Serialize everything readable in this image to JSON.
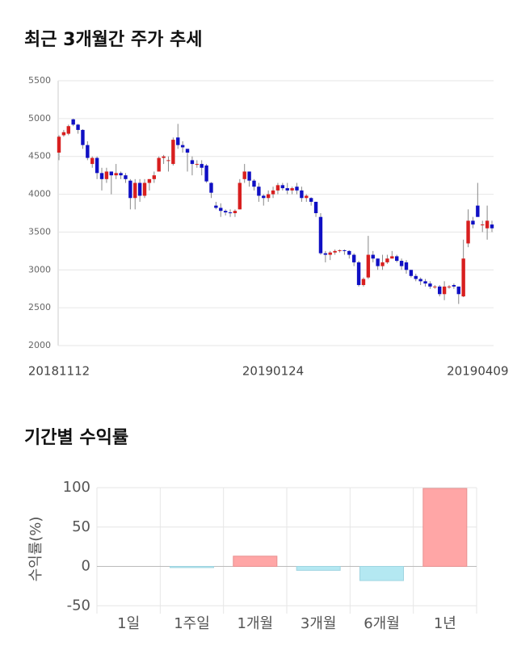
{
  "chart_data": [
    {
      "type": "candlestick",
      "title": "최근 3개월간 주가 추세",
      "categories": [
        "20181112",
        null,
        null,
        null,
        null,
        null,
        null,
        null,
        null,
        null,
        null,
        null,
        null,
        null,
        null,
        null,
        null,
        null,
        null,
        null,
        null,
        null,
        null,
        null,
        null,
        null,
        null,
        null,
        null,
        null,
        null,
        null,
        null,
        null,
        null,
        null,
        null,
        null,
        null,
        null,
        null,
        null,
        null,
        null,
        null,
        "20190124",
        null,
        null,
        null,
        null,
        null,
        null,
        null,
        null,
        null,
        null,
        null,
        null,
        null,
        null,
        null,
        null,
        null,
        null,
        null,
        null,
        null,
        null,
        null,
        null,
        null,
        null,
        null,
        null,
        null,
        null,
        null,
        null,
        null,
        null,
        null,
        null,
        null,
        null,
        null,
        null,
        null,
        null,
        "20190409",
        null,
        null,
        null
      ],
      "open": [
        4550,
        4780,
        4800,
        4990,
        4920,
        4850,
        4650,
        4400,
        4480,
        4280,
        4200,
        4300,
        4250,
        4280,
        4250,
        4180,
        3950,
        4150,
        3980,
        4150,
        4200,
        4300,
        4480,
        4450,
        4400,
        4750,
        4650,
        4600,
        4450,
        4400,
        4400,
        4380,
        4150,
        3850,
        3820,
        3780,
        3760,
        3750,
        3800,
        4200,
        4300,
        4180,
        4100,
        3980,
        3950,
        4000,
        4050,
        4120,
        4080,
        4050,
        4100,
        4050,
        3950,
        3950,
        3900,
        3700,
        3220,
        3200,
        3230,
        3250,
        3260,
        3250,
        3200,
        3100,
        2800,
        2900,
        3200,
        3150,
        3050,
        3100,
        3150,
        3180,
        3120,
        3100,
        3000,
        2920,
        2880,
        2850,
        2820,
        2780,
        2780,
        2680,
        2780,
        2800,
        2780,
        2650,
        3350,
        3650,
        3850,
        3600,
        3550,
        3600
      ],
      "high": [
        4780,
        4850,
        4920,
        5000,
        4930,
        4860,
        4700,
        4500,
        4500,
        4350,
        4350,
        4300,
        4400,
        4300,
        4280,
        4200,
        4200,
        4200,
        4200,
        4200,
        4300,
        4500,
        4520,
        4500,
        4750,
        4930,
        4700,
        4600,
        4500,
        4450,
        4450,
        4400,
        4160,
        3900,
        3880,
        3800,
        3800,
        3800,
        4200,
        4400,
        4300,
        4200,
        4150,
        4000,
        4050,
        4100,
        4150,
        4150,
        4150,
        4100,
        4150,
        4100,
        4000,
        3960,
        3900,
        3750,
        3250,
        3250,
        3270,
        3270,
        3270,
        3260,
        3220,
        3120,
        2900,
        3450,
        3250,
        3150,
        3200,
        3200,
        3250,
        3200,
        3150,
        3130,
        3000,
        2950,
        2900,
        2880,
        2850,
        2800,
        2800,
        2850,
        2800,
        2820,
        2780,
        3400,
        3800,
        3700,
        4150,
        3650,
        3850,
        3650
      ],
      "low": [
        4450,
        4760,
        4780,
        4900,
        4800,
        4600,
        4450,
        4350,
        4200,
        4050,
        4150,
        4000,
        4200,
        4200,
        4150,
        3800,
        3800,
        3900,
        3950,
        4050,
        4150,
        4300,
        4400,
        4300,
        4380,
        4600,
        4550,
        4300,
        4250,
        4350,
        4250,
        4150,
        3950,
        3800,
        3700,
        3720,
        3700,
        3700,
        3800,
        4150,
        4100,
        4050,
        3900,
        3850,
        3900,
        3950,
        4000,
        4050,
        4000,
        4000,
        4000,
        3900,
        3900,
        3850,
        3700,
        3200,
        3100,
        3130,
        3200,
        3230,
        3200,
        3150,
        3050,
        2780,
        2780,
        2880,
        3100,
        3000,
        3000,
        3080,
        3150,
        3100,
        3000,
        2950,
        2900,
        2850,
        2800,
        2780,
        2750,
        2750,
        2650,
        2600,
        2750,
        2750,
        2550,
        2640,
        3300,
        3550,
        3700,
        3500,
        3400,
        3500
      ],
      "close": [
        4760,
        4820,
        4900,
        4920,
        4850,
        4650,
        4480,
        4480,
        4280,
        4200,
        4300,
        4250,
        4280,
        4250,
        4200,
        3950,
        4150,
        3980,
        4150,
        4200,
        4250,
        4480,
        4500,
        4450,
        4720,
        4650,
        4620,
        4550,
        4400,
        4400,
        4350,
        4170,
        4020,
        3820,
        3780,
        3760,
        3750,
        3780,
        4150,
        4300,
        4180,
        4100,
        3980,
        3950,
        4000,
        4050,
        4120,
        4080,
        4050,
        4080,
        4050,
        3950,
        3980,
        3900,
        3750,
        3220,
        3200,
        3230,
        3250,
        3260,
        3250,
        3200,
        3100,
        2800,
        2880,
        3200,
        3150,
        3050,
        3100,
        3150,
        3180,
        3120,
        3050,
        3000,
        2920,
        2880,
        2850,
        2820,
        2780,
        2780,
        2680,
        2780,
        2780,
        2780,
        2680,
        3150,
        3650,
        3600,
        3700,
        3600,
        3650,
        3550
      ],
      "up_color": "#d81f1f",
      "down_color": "#1010c4",
      "ylim": [
        2000,
        5500
      ],
      "yticks": [
        2000,
        2500,
        3000,
        3500,
        4000,
        4500,
        5000,
        5500
      ],
      "grid": true
    },
    {
      "type": "bar",
      "title": "기간별 수익률",
      "y_label": "수익률(%)",
      "categories": [
        "1일",
        "1주일",
        "1개월",
        "3개월",
        "6개월",
        "1년"
      ],
      "values": [
        0,
        -1.5,
        13,
        -5,
        -18,
        99
      ],
      "positive_color": "#ffa6a6",
      "negative_color": "#b4e8f2",
      "ylim": [
        -60,
        100
      ],
      "yticks": [
        -50,
        0,
        50,
        100
      ],
      "grid": true
    }
  ]
}
